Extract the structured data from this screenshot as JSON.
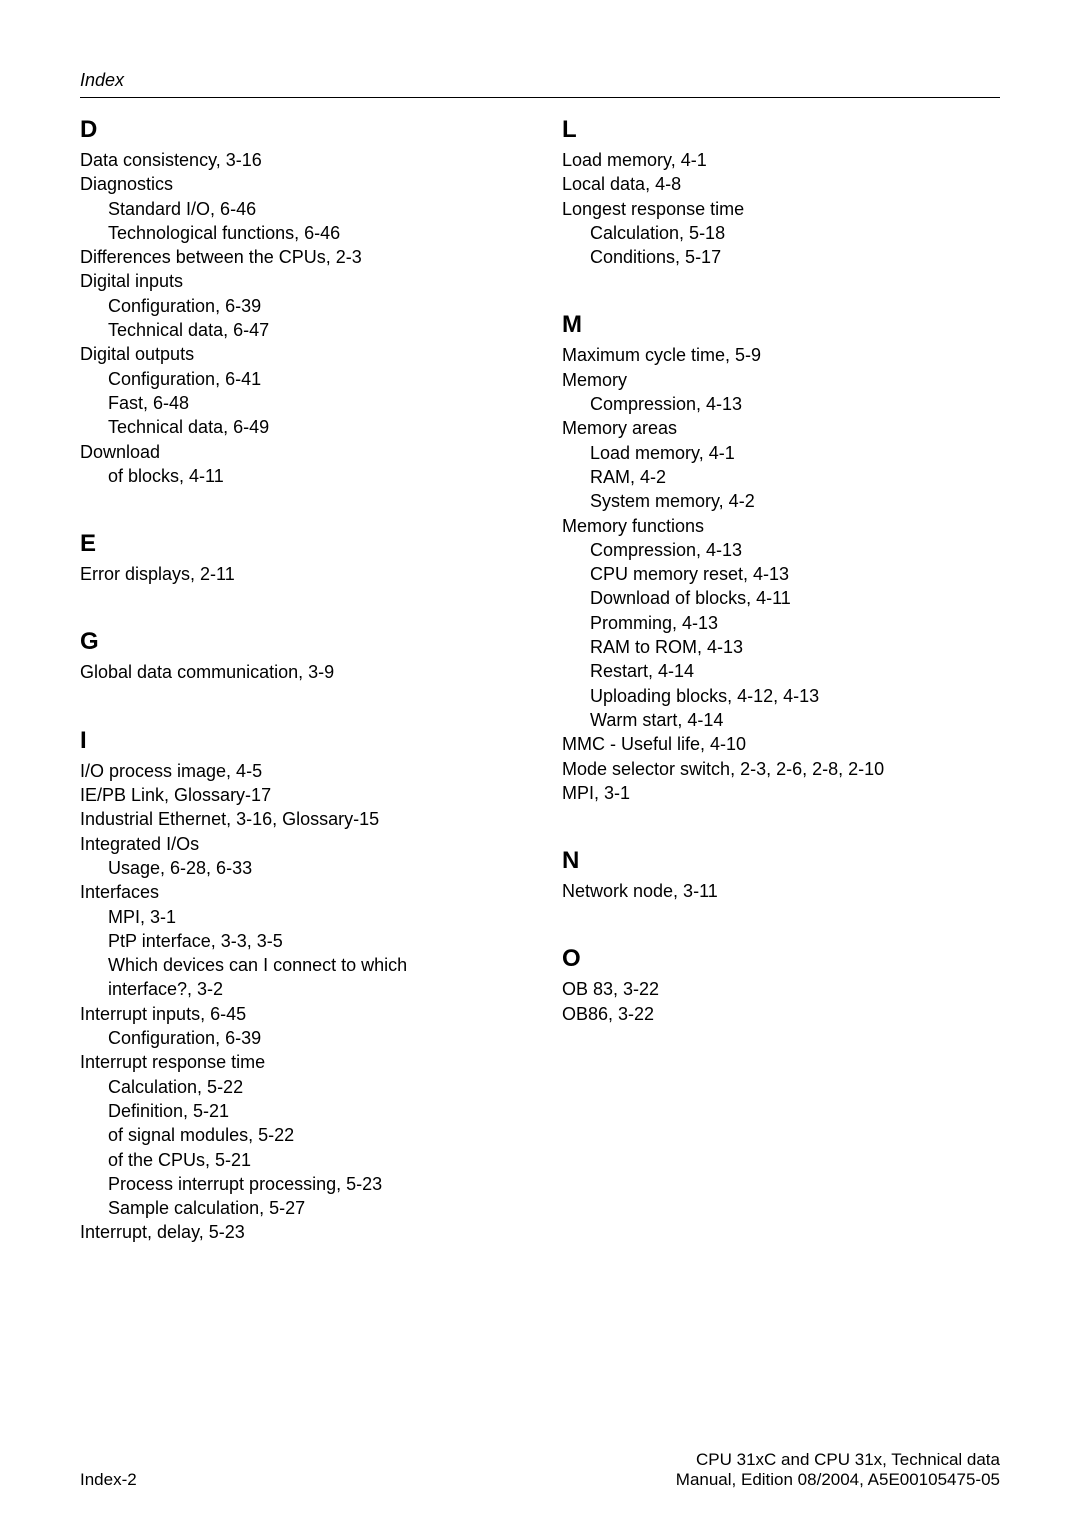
{
  "header": {
    "running_title": "Index"
  },
  "left": {
    "D": {
      "letter": "D",
      "items": [
        {
          "t": "Data consistency, 3-16"
        },
        {
          "t": "Diagnostics"
        },
        {
          "t": "Standard I/O, 6-46",
          "sub": true
        },
        {
          "t": "Technological functions, 6-46",
          "sub": true
        },
        {
          "t": "Differences between the CPUs, 2-3"
        },
        {
          "t": "Digital inputs"
        },
        {
          "t": "Configuration, 6-39",
          "sub": true
        },
        {
          "t": "Technical data, 6-47",
          "sub": true
        },
        {
          "t": "Digital outputs"
        },
        {
          "t": "Configuration, 6-41",
          "sub": true
        },
        {
          "t": "Fast, 6-48",
          "sub": true
        },
        {
          "t": "Technical data, 6-49",
          "sub": true
        },
        {
          "t": "Download"
        },
        {
          "t": "of blocks, 4-11",
          "sub": true
        }
      ]
    },
    "E": {
      "letter": "E",
      "items": [
        {
          "t": "Error displays, 2-11"
        }
      ]
    },
    "G": {
      "letter": "G",
      "items": [
        {
          "t": "Global data communication, 3-9"
        }
      ]
    },
    "I": {
      "letter": "I",
      "items": [
        {
          "t": "I/O process image, 4-5"
        },
        {
          "t": "IE/PB Link, Glossary-17"
        },
        {
          "t": "Industrial Ethernet, 3-16, Glossary-15"
        },
        {
          "t": "Integrated I/Os"
        },
        {
          "t": "Usage, 6-28, 6-33",
          "sub": true
        },
        {
          "t": "Interfaces"
        },
        {
          "t": "MPI, 3-1",
          "sub": true
        },
        {
          "t": "PtP interface, 3-3, 3-5",
          "sub": true
        },
        {
          "t": "Which devices can I connect to which",
          "sub": true
        },
        {
          "t": "interface?, 3-2",
          "sub": true
        },
        {
          "t": "Interrupt inputs, 6-45"
        },
        {
          "t": "Configuration, 6-39",
          "sub": true
        },
        {
          "t": "Interrupt response time"
        },
        {
          "t": "Calculation, 5-22",
          "sub": true
        },
        {
          "t": "Definition, 5-21",
          "sub": true
        },
        {
          "t": "of signal modules, 5-22",
          "sub": true
        },
        {
          "t": "of the CPUs, 5-21",
          "sub": true
        },
        {
          "t": "Process interrupt processing, 5-23",
          "sub": true
        },
        {
          "t": "Sample calculation, 5-27",
          "sub": true
        },
        {
          "t": "Interrupt, delay, 5-23"
        }
      ]
    }
  },
  "right": {
    "L": {
      "letter": "L",
      "items": [
        {
          "t": "Load memory, 4-1"
        },
        {
          "t": "Local data, 4-8"
        },
        {
          "t": "Longest response time"
        },
        {
          "t": "Calculation, 5-18",
          "sub": true
        },
        {
          "t": "Conditions, 5-17",
          "sub": true
        }
      ]
    },
    "M": {
      "letter": "M",
      "items": [
        {
          "t": "Maximum cycle time, 5-9"
        },
        {
          "t": "Memory"
        },
        {
          "t": "Compression, 4-13",
          "sub": true
        },
        {
          "t": "Memory areas"
        },
        {
          "t": "Load memory, 4-1",
          "sub": true
        },
        {
          "t": "RAM, 4-2",
          "sub": true
        },
        {
          "t": "System memory, 4-2",
          "sub": true
        },
        {
          "t": "Memory functions"
        },
        {
          "t": "Compression, 4-13",
          "sub": true
        },
        {
          "t": "CPU memory reset, 4-13",
          "sub": true
        },
        {
          "t": "Download of blocks, 4-11",
          "sub": true
        },
        {
          "t": "Promming, 4-13",
          "sub": true
        },
        {
          "t": "RAM to ROM, 4-13",
          "sub": true
        },
        {
          "t": "Restart, 4-14",
          "sub": true
        },
        {
          "t": "Uploading blocks, 4-12, 4-13",
          "sub": true
        },
        {
          "t": "Warm start, 4-14",
          "sub": true
        },
        {
          "t": "MMC - Useful life, 4-10"
        },
        {
          "t": "Mode selector switch, 2-3, 2-6, 2-8, 2-10"
        },
        {
          "t": "MPI, 3-1"
        }
      ]
    },
    "N": {
      "letter": "N",
      "items": [
        {
          "t": "Network node, 3-11"
        }
      ]
    },
    "O": {
      "letter": "O",
      "items": [
        {
          "t": "OB 83, 3-22"
        },
        {
          "t": "OB86, 3-22"
        }
      ]
    }
  },
  "footer": {
    "left": "Index-2",
    "right_line1": "CPU 31xC and CPU 31x, Technical data",
    "right_line2": "Manual, Edition 08/2004, A5E00105475-05"
  }
}
